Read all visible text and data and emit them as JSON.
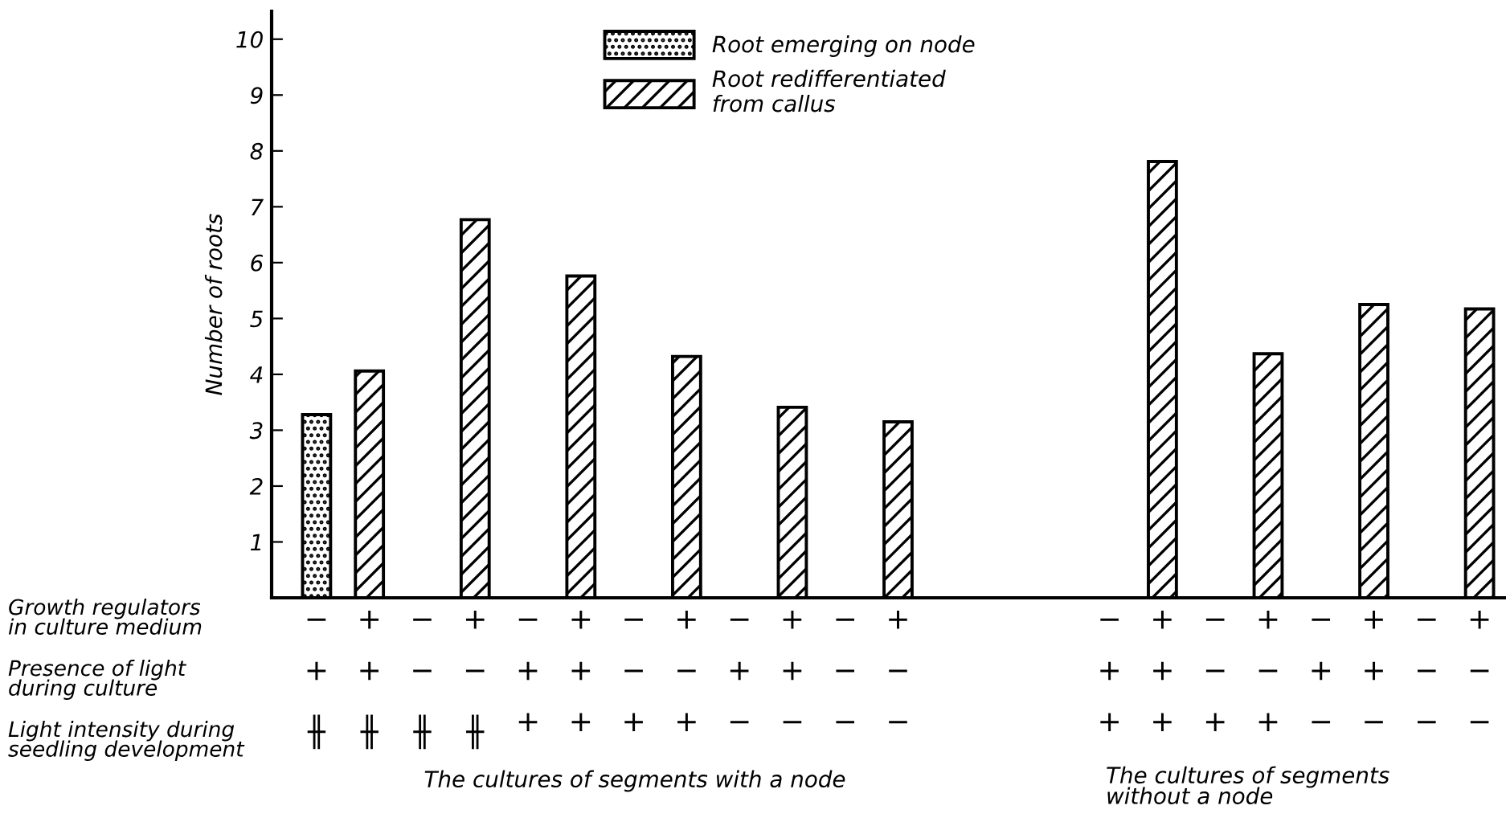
{
  "chart_data": {
    "type": "bar",
    "ylabel": "Number of roots",
    "categories": [
      "−\n+\n╫",
      "+\n+\n╫",
      "−\n−\n╫",
      "+\n−\n╫",
      "−\n+\n+",
      "+\n+\n+",
      "−\n−\n+",
      "+\n−\n+",
      "−\n+\n−",
      "+\n+\n−",
      "−\n−\n−",
      "+\n−\n−",
      null,
      null,
      null,
      "−\n+\n+",
      "+\n+\n+",
      "−\n−\n+",
      "+\n−\n+",
      "−\n+\n−",
      "+\n+\n−",
      "−\n−\n−",
      "+\n−\n−"
    ],
    "series": [
      {
        "name": "Root emerging on node",
        "color": "#000000",
        "values": [
          3.28,
          null,
          null,
          null,
          null,
          null,
          null,
          null,
          null,
          null,
          null,
          null,
          null,
          null,
          null,
          null,
          null,
          null,
          null,
          null,
          null,
          null,
          null
        ]
      },
      {
        "name": "Root redifferentiated\nfrom callus",
        "color": "#000000",
        "values": [
          null,
          4.06,
          null,
          6.77,
          null,
          5.76,
          null,
          4.32,
          null,
          3.41,
          null,
          3.15,
          null,
          null,
          null,
          null,
          7.81,
          null,
          4.37,
          null,
          5.25,
          null,
          5.17
        ]
      }
    ],
    "ylim": [
      0,
      10.5
    ],
    "yticks": [
      {
        "value": 0,
        "label": null
      },
      1,
      2,
      3,
      4,
      5,
      6,
      7,
      8,
      9,
      10
    ],
    "legend": "top",
    "annotations": [
      "Growth regulators\nin culture medium",
      "Presence of light\nduring culture",
      "Light intensity during\nseedling development",
      "The cultures of segments with a node",
      "The cultures of segments\nwithout a node"
    ]
  }
}
